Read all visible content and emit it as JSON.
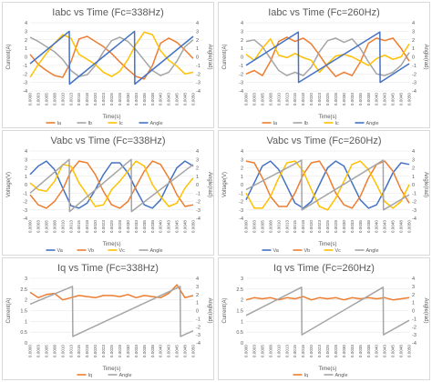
{
  "palette": {
    "orange": "#ed7d31",
    "gray": "#a5a5a5",
    "yellow": "#ffc000",
    "blue": "#4472c4"
  },
  "x_ticks": [
    "0.0000",
    "0.0003",
    "0.0005",
    "0.0008",
    "0.0010",
    "0.0013",
    "0.0015",
    "0.0018",
    "0.0020",
    "0.0023",
    "0.0025",
    "0.0028",
    "0.0030",
    "0.0033",
    "0.0035",
    "0.0038",
    "0.0040",
    "0.0043",
    "0.0045",
    "0.0048",
    "0.0050"
  ],
  "chart_data": [
    {
      "type": "line",
      "title": "Iabc vs Time (Fc=338Hz)",
      "xlabel": "Time(s)",
      "ylabel": "Current(A)",
      "y2label": "Angle(rad)",
      "ylim": [
        -4,
        4
      ],
      "y2lim": [
        -4,
        4
      ],
      "yticks": [
        -4,
        -3,
        -2,
        -1,
        0,
        1,
        2,
        3,
        4
      ],
      "xlim": [
        0,
        0.005
      ],
      "legend_position": "bottom",
      "series": [
        {
          "name": "Ia",
          "axis": "left",
          "color": "#ed7d31",
          "x": [
            0,
            0.00025,
            0.0005,
            0.00075,
            0.001,
            0.00125,
            0.0015,
            0.00175,
            0.002,
            0.00225,
            0.0025,
            0.00275,
            0.003,
            0.00325,
            0.0035,
            0.00375,
            0.004,
            0.00425,
            0.0045,
            0.00475,
            0.005
          ],
          "values": [
            0.3,
            -0.9,
            -1.6,
            -2.2,
            -2.4,
            -0.6,
            2.1,
            2.4,
            1.8,
            1.2,
            0.4,
            -0.6,
            -1.5,
            -2.3,
            -2.6,
            -1.0,
            1.6,
            2.2,
            1.7,
            0.8,
            -0.2
          ]
        },
        {
          "name": "Ib",
          "axis": "left",
          "color": "#a5a5a5",
          "x": [
            0,
            0.00025,
            0.0005,
            0.00075,
            0.001,
            0.00125,
            0.0015,
            0.00175,
            0.002,
            0.00225,
            0.0025,
            0.00275,
            0.003,
            0.00325,
            0.0035,
            0.00375,
            0.004,
            0.00425,
            0.0045,
            0.00475,
            0.005
          ],
          "values": [
            2.3,
            1.8,
            1.2,
            0.6,
            -0.3,
            -1.6,
            -2.3,
            -2.1,
            -1.0,
            0.6,
            1.9,
            2.3,
            1.8,
            0.8,
            -0.4,
            -1.6,
            -2.2,
            -1.8,
            -0.5,
            1.2,
            2.0
          ]
        },
        {
          "name": "Ic",
          "axis": "left",
          "color": "#ffc000",
          "x": [
            0,
            0.00025,
            0.0005,
            0.00075,
            0.001,
            0.00125,
            0.0015,
            0.00175,
            0.002,
            0.00225,
            0.0025,
            0.00275,
            0.003,
            0.00325,
            0.0035,
            0.00375,
            0.004,
            0.00425,
            0.0045,
            0.00475,
            0.005
          ],
          "values": [
            -2.4,
            -0.9,
            0.4,
            1.6,
            2.6,
            2.2,
            0.3,
            -0.3,
            -0.9,
            -1.8,
            -2.3,
            -1.7,
            -0.3,
            1.5,
            2.9,
            2.6,
            0.7,
            -0.4,
            -1.1,
            -2.0,
            -1.8
          ]
        },
        {
          "name": "Angle",
          "axis": "right",
          "color": "#4472c4",
          "x": [
            0,
            0.0012,
            0.00121,
            0.0032,
            0.00321,
            0.005
          ],
          "values": [
            -0.8,
            3.0,
            -3.2,
            3.0,
            -3.2,
            2.4
          ]
        }
      ]
    },
    {
      "type": "line",
      "title": "Iabc vs Time (Fc=260Hz)",
      "xlabel": "Time(s)",
      "ylabel": "Current(A)",
      "y2label": "Angle(rad)",
      "ylim": [
        -4,
        4
      ],
      "y2lim": [
        -4,
        4
      ],
      "yticks": [
        -4,
        -3,
        -2,
        -1,
        0,
        1,
        2,
        3,
        4
      ],
      "xlim": [
        0,
        0.005
      ],
      "legend_position": "bottom",
      "series": [
        {
          "name": "Ia",
          "axis": "left",
          "color": "#ed7d31",
          "x": [
            0,
            0.00025,
            0.0005,
            0.00075,
            0.001,
            0.00125,
            0.0015,
            0.00175,
            0.002,
            0.00225,
            0.0025,
            0.00275,
            0.003,
            0.00325,
            0.0035,
            0.00375,
            0.004,
            0.00425,
            0.0045,
            0.00475,
            0.005
          ],
          "values": [
            -2.0,
            -1.6,
            -2.2,
            -0.5,
            1.8,
            2.3,
            1.8,
            2.2,
            1.5,
            0.2,
            -1.2,
            -2.3,
            -1.8,
            -2.2,
            -0.6,
            1.6,
            2.2,
            1.9,
            2.2,
            1.0,
            -0.5
          ]
        },
        {
          "name": "Ib",
          "axis": "left",
          "color": "#a5a5a5",
          "x": [
            0,
            0.00025,
            0.0005,
            0.00075,
            0.001,
            0.00125,
            0.0015,
            0.00175,
            0.002,
            0.00225,
            0.0025,
            0.00275,
            0.003,
            0.00325,
            0.0035,
            0.00375,
            0.004,
            0.00425,
            0.0045,
            0.00475,
            0.005
          ],
          "values": [
            1.8,
            2.0,
            1.2,
            -0.2,
            -1.6,
            -2.2,
            -1.8,
            -2.2,
            -1.2,
            0.6,
            1.9,
            2.2,
            1.7,
            2.1,
            1.0,
            -0.6,
            -2.0,
            -2.2,
            -1.8,
            -1.0,
            0.5
          ]
        },
        {
          "name": "Ic",
          "axis": "left",
          "color": "#ffc000",
          "x": [
            0,
            0.00025,
            0.0005,
            0.00075,
            0.001,
            0.00125,
            0.0015,
            0.00175,
            0.002,
            0.00225,
            0.0025,
            0.00275,
            0.003,
            0.00325,
            0.0035,
            0.00375,
            0.004,
            0.00425,
            0.0045,
            0.00475,
            0.005
          ],
          "values": [
            0.3,
            -0.4,
            1.0,
            2.1,
            0.2,
            -0.1,
            0.4,
            -0.1,
            -0.4,
            -1.8,
            -0.8,
            0.1,
            0.3,
            0.0,
            -0.5,
            -1.0,
            -0.2,
            0.2,
            -0.3,
            0.0,
            1.5
          ]
        },
        {
          "name": "Angle",
          "axis": "right",
          "color": "#4472c4",
          "x": [
            0,
            0.0016,
            0.00161,
            0.0041,
            0.00411,
            0.005
          ],
          "values": [
            -1.0,
            2.9,
            -3.0,
            2.9,
            -3.0,
            -0.8
          ]
        }
      ]
    },
    {
      "type": "line",
      "title": "Vabc vs Time (Fc=338Hz)",
      "xlabel": "Time(s)",
      "ylabel": "Voltage(V)",
      "y2label": "Angle(rad)",
      "ylim": [
        -4,
        4
      ],
      "y2lim": [
        -4,
        4
      ],
      "yticks": [
        -4,
        -3,
        -2,
        -1,
        0,
        1,
        2,
        3,
        4
      ],
      "xlim": [
        0,
        0.005
      ],
      "legend_position": "bottom",
      "series": [
        {
          "name": "Va",
          "axis": "left",
          "color": "#4472c4",
          "x": [
            0,
            0.00025,
            0.0005,
            0.00075,
            0.001,
            0.00125,
            0.0015,
            0.00175,
            0.002,
            0.00225,
            0.0025,
            0.00275,
            0.003,
            0.00325,
            0.0035,
            0.00375,
            0.004,
            0.00425,
            0.0045,
            0.00475,
            0.005
          ],
          "values": [
            1.2,
            2.2,
            2.8,
            1.8,
            -0.4,
            -2.5,
            -2.8,
            -2.2,
            -0.6,
            1.2,
            2.6,
            2.6,
            1.4,
            -0.6,
            -2.4,
            -2.8,
            -1.8,
            0.2,
            2.0,
            2.8,
            2.2
          ]
        },
        {
          "name": "Vb",
          "axis": "left",
          "color": "#ed7d31",
          "x": [
            0,
            0.00025,
            0.0005,
            0.00075,
            0.001,
            0.00125,
            0.0015,
            0.00175,
            0.002,
            0.00225,
            0.0025,
            0.00275,
            0.003,
            0.00325,
            0.0035,
            0.00375,
            0.004,
            0.00425,
            0.0045,
            0.00475,
            0.005
          ],
          "values": [
            -1.2,
            -2.4,
            -2.8,
            -2.0,
            -0.6,
            1.6,
            2.8,
            2.6,
            1.2,
            -0.8,
            -2.4,
            -2.8,
            -2.0,
            -0.2,
            1.6,
            2.8,
            2.4,
            0.8,
            -1.2,
            -2.6,
            -2.4
          ]
        },
        {
          "name": "Vc",
          "axis": "left",
          "color": "#ffc000",
          "x": [
            0,
            0.00025,
            0.0005,
            0.00075,
            0.001,
            0.00125,
            0.0015,
            0.00175,
            0.002,
            0.00225,
            0.0025,
            0.00275,
            0.003,
            0.00325,
            0.0035,
            0.00375,
            0.004,
            0.00425,
            0.0045,
            0.00475,
            0.005
          ],
          "values": [
            0.2,
            -0.6,
            -0.8,
            0.4,
            2.4,
            2.2,
            0.2,
            -1.2,
            -2.6,
            -2.4,
            -0.6,
            0.4,
            1.6,
            2.8,
            2.2,
            0.0,
            -1.4,
            -2.6,
            -2.2,
            -0.4,
            0.8
          ]
        },
        {
          "name": "Angle",
          "axis": "right",
          "color": "#a5a5a5",
          "x": [
            0,
            0.0012,
            0.00121,
            0.0031,
            0.00311,
            0.005
          ],
          "values": [
            -1.0,
            3.0,
            -3.2,
            3.0,
            -3.2,
            2.4
          ]
        }
      ]
    },
    {
      "type": "line",
      "title": "Vabc vs Time (Fc=260Hz)",
      "xlabel": "Time(s)",
      "ylabel": "Voltage(V)",
      "y2label": "Angle(rad)",
      "ylim": [
        -4,
        4
      ],
      "y2lim": [
        -4,
        4
      ],
      "yticks": [
        -4,
        -3,
        -2,
        -1,
        0,
        1,
        2,
        3,
        4
      ],
      "xlim": [
        0,
        0.005
      ],
      "legend_position": "bottom",
      "series": [
        {
          "name": "Va",
          "axis": "left",
          "color": "#4472c4",
          "x": [
            0,
            0.00025,
            0.0005,
            0.00075,
            0.001,
            0.00125,
            0.0015,
            0.00175,
            0.002,
            0.00225,
            0.0025,
            0.00275,
            0.003,
            0.00325,
            0.0035,
            0.00375,
            0.004,
            0.00425,
            0.0045,
            0.00475,
            0.005
          ],
          "values": [
            -1.8,
            0.2,
            2.2,
            2.8,
            1.8,
            -0.2,
            -2.2,
            -2.8,
            -2.0,
            0.0,
            2.0,
            2.8,
            2.2,
            0.2,
            -1.8,
            -2.8,
            -2.4,
            -0.6,
            1.4,
            2.6,
            2.4
          ]
        },
        {
          "name": "Vb",
          "axis": "left",
          "color": "#ed7d31",
          "x": [
            0,
            0.00025,
            0.0005,
            0.00075,
            0.001,
            0.00125,
            0.0015,
            0.00175,
            0.002,
            0.00225,
            0.0025,
            0.00275,
            0.003,
            0.00325,
            0.0035,
            0.00375,
            0.004,
            0.00425,
            0.0045,
            0.00475,
            0.005
          ],
          "values": [
            2.8,
            2.6,
            0.8,
            -1.4,
            -2.6,
            -2.6,
            -1.0,
            1.2,
            2.6,
            2.8,
            1.2,
            -1.0,
            -2.4,
            -2.8,
            -1.4,
            0.8,
            2.4,
            2.8,
            1.6,
            -0.6,
            -2.2
          ]
        },
        {
          "name": "Vc",
          "axis": "left",
          "color": "#ffc000",
          "x": [
            0,
            0.00025,
            0.0005,
            0.00075,
            0.001,
            0.00125,
            0.0015,
            0.00175,
            0.002,
            0.00225,
            0.0025,
            0.00275,
            0.003,
            0.00325,
            0.0035,
            0.00375,
            0.004,
            0.00425,
            0.0045,
            0.00475,
            0.005
          ],
          "values": [
            -1.0,
            -2.8,
            -2.8,
            -1.4,
            0.8,
            2.6,
            2.8,
            1.6,
            -0.6,
            -2.6,
            -3.0,
            -1.6,
            0.4,
            2.4,
            2.8,
            1.8,
            0.0,
            -2.0,
            -2.8,
            -2.0,
            0.0
          ]
        },
        {
          "name": "Angle",
          "axis": "right",
          "color": "#a5a5a5",
          "x": [
            0,
            0.0017,
            0.00171,
            0.0042,
            0.00421,
            0.005
          ],
          "values": [
            -0.6,
            2.9,
            -3.0,
            2.9,
            -3.0,
            -1.2
          ]
        }
      ]
    },
    {
      "type": "line",
      "title": "Iq vs Time (Fc=338Hz)",
      "xlabel": "Time(s)",
      "ylabel": "Current(A)",
      "y2label": "Angle(rad)",
      "ylim": [
        0,
        3
      ],
      "y2lim": [
        -4,
        4
      ],
      "yticks": [
        0,
        0.5,
        1,
        1.5,
        2,
        2.5,
        3
      ],
      "y2ticks": [
        -4,
        -3,
        -2,
        -1,
        0,
        1,
        2,
        3,
        4
      ],
      "xlim": [
        0,
        0.005
      ],
      "legend_position": "bottom",
      "series": [
        {
          "name": "Iq",
          "axis": "left",
          "color": "#ed7d31",
          "x": [
            0,
            0.00025,
            0.0005,
            0.00075,
            0.001,
            0.00125,
            0.0015,
            0.00175,
            0.002,
            0.00225,
            0.0025,
            0.00275,
            0.003,
            0.00325,
            0.0035,
            0.00375,
            0.004,
            0.00425,
            0.0045,
            0.00475,
            0.005
          ],
          "values": [
            2.35,
            2.1,
            2.25,
            2.3,
            2.0,
            2.1,
            2.2,
            2.15,
            2.1,
            2.2,
            2.2,
            2.15,
            2.25,
            2.1,
            2.2,
            2.15,
            2.1,
            2.3,
            2.7,
            2.1,
            2.2
          ]
        },
        {
          "name": "Angle",
          "axis": "right",
          "color": "#a5a5a5",
          "x": [
            0,
            0.0013,
            0.00131,
            0.0046,
            0.00461,
            0.005
          ],
          "values": [
            0.8,
            3.0,
            -3.2,
            3.0,
            -3.2,
            -2.5
          ]
        }
      ]
    },
    {
      "type": "line",
      "title": "Iq vs Time (Fc=260Hz)",
      "xlabel": "Time(s)",
      "ylabel": "Current(A)",
      "y2label": "Angle(rad)",
      "ylim": [
        0,
        3
      ],
      "y2lim": [
        -4,
        4
      ],
      "yticks": [
        0,
        0.5,
        1,
        1.5,
        2,
        2.5,
        3
      ],
      "y2ticks": [
        -4,
        -3,
        -2,
        -1,
        0,
        1,
        2,
        3,
        4
      ],
      "xlim": [
        0,
        0.005
      ],
      "legend_position": "bottom",
      "series": [
        {
          "name": "Iq",
          "axis": "left",
          "color": "#ed7d31",
          "x": [
            0,
            0.00025,
            0.0005,
            0.00075,
            0.001,
            0.00125,
            0.0015,
            0.00175,
            0.002,
            0.00225,
            0.0025,
            0.00275,
            0.003,
            0.00325,
            0.0035,
            0.00375,
            0.004,
            0.00425,
            0.0045,
            0.00475,
            0.005
          ],
          "values": [
            2.0,
            2.1,
            2.05,
            2.1,
            2.0,
            2.1,
            2.05,
            2.15,
            2.0,
            2.1,
            2.05,
            2.1,
            2.0,
            2.1,
            2.05,
            2.1,
            2.05,
            2.1,
            2.0,
            2.05,
            2.1
          ]
        },
        {
          "name": "Angle",
          "axis": "right",
          "color": "#a5a5a5",
          "x": [
            0,
            0.0017,
            0.00171,
            0.0042,
            0.00421,
            0.005
          ],
          "values": [
            -0.6,
            2.9,
            -3.0,
            2.9,
            -3.0,
            -1.2
          ]
        }
      ]
    }
  ]
}
